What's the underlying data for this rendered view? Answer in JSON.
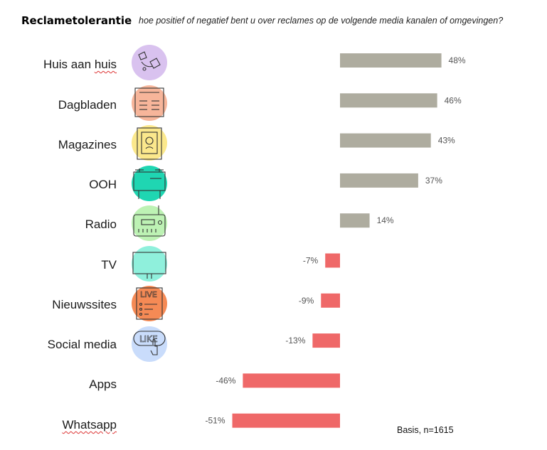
{
  "title": "Reclametolerantie",
  "subtitle": "hoe positief of negatief bent u over reclames op de volgende media kanalen of omgevingen?",
  "basis": "Basis, n=1615",
  "colors": {
    "positive": "#aeac9f",
    "negative": "#ef6868"
  },
  "chart_data": {
    "type": "bar",
    "orientation": "horizontal",
    "categories": [
      "Huis aan huis",
      "Dagbladen",
      "Magazines",
      "OOH",
      "Radio",
      "TV",
      "Nieuwssites",
      "Social media",
      "Apps",
      "Whatsapp"
    ],
    "values": [
      48,
      46,
      43,
      37,
      14,
      -7,
      -9,
      -13,
      -46,
      -51
    ],
    "value_labels": [
      "48%",
      "46%",
      "43%",
      "37%",
      "14%",
      "-7%",
      "-9%",
      "-13%",
      "-46%",
      "-51%"
    ],
    "title": "Reclametolerantie",
    "grid": false
  },
  "icons": [
    {
      "name": "door-to-door-icon",
      "color": "#d9c2ef"
    },
    {
      "name": "newspaper-icon",
      "color": "#f7b59a"
    },
    {
      "name": "magazine-icon",
      "color": "#fbe88c"
    },
    {
      "name": "billboard-icon",
      "color": "#1fd6b2"
    },
    {
      "name": "radio-icon",
      "color": "#bdf2b4"
    },
    {
      "name": "tv-icon",
      "color": "#8ff0dc"
    },
    {
      "name": "news-site-icon",
      "color": "#f58a55"
    },
    {
      "name": "social-like-icon",
      "color": "#c9dcfb"
    }
  ]
}
